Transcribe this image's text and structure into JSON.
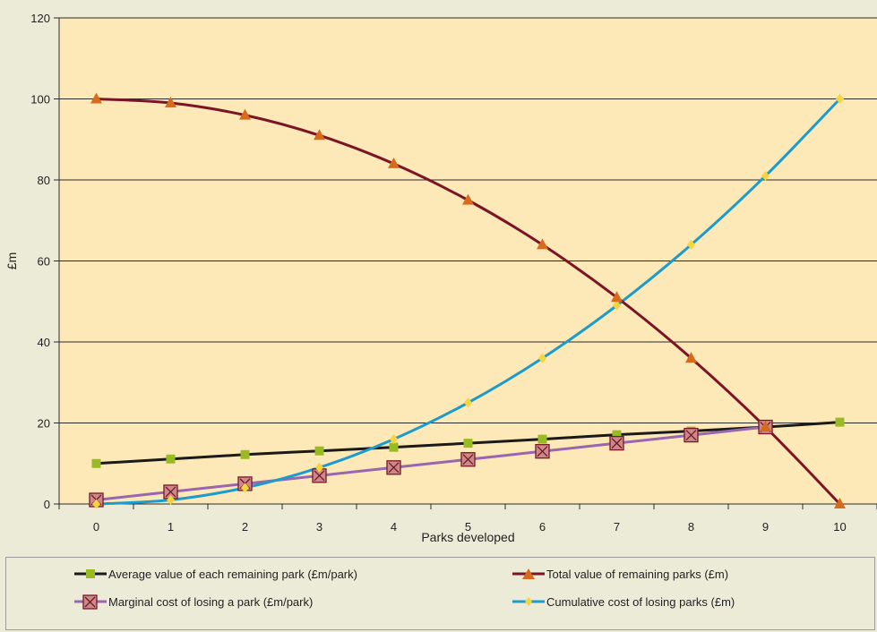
{
  "chart_data": {
    "type": "line",
    "xlabel": "Parks developed",
    "ylabel": "£m",
    "x": [
      0,
      1,
      2,
      3,
      4,
      5,
      6,
      7,
      8,
      9,
      10
    ],
    "ylim": [
      0,
      120
    ],
    "yticks": [
      0,
      20,
      40,
      60,
      80,
      100,
      120
    ],
    "grid": "horizontal",
    "legend_position": "bottom",
    "series": [
      {
        "name": "Average value of each remaining park (£m/park)",
        "color": "#1a1a1a",
        "marker": "square",
        "marker_color": "#99bb22",
        "values": [
          10,
          11.1,
          12.2,
          13.1,
          14,
          15,
          16,
          17.1,
          18,
          19,
          20.2
        ]
      },
      {
        "name": "Total value of remaining parks (£m)",
        "color": "#7b1526",
        "marker": "triangle",
        "marker_color": "#d86a1c",
        "values": [
          100,
          99,
          96,
          91,
          84,
          75,
          64,
          51,
          36,
          19,
          0
        ]
      },
      {
        "name": "Marginal cost of losing a park (£m/park)",
        "color": "#9a66b0",
        "marker": "boxed-x",
        "marker_color": "#c98a8a",
        "values": [
          1,
          3,
          5,
          7,
          9,
          11,
          13,
          15,
          17,
          19,
          null
        ]
      },
      {
        "name": "Cumulative cost of losing parks (£m)",
        "color": "#1c9bcc",
        "marker": "diamond",
        "marker_color": "#f6d43a",
        "values": [
          0,
          1,
          4,
          9,
          16,
          25,
          36,
          49,
          64,
          81,
          100
        ]
      }
    ]
  },
  "colors": {
    "plot_background": "#fde9b8",
    "page_background": "#ecebd8",
    "gridline": "#2b2b2b"
  }
}
